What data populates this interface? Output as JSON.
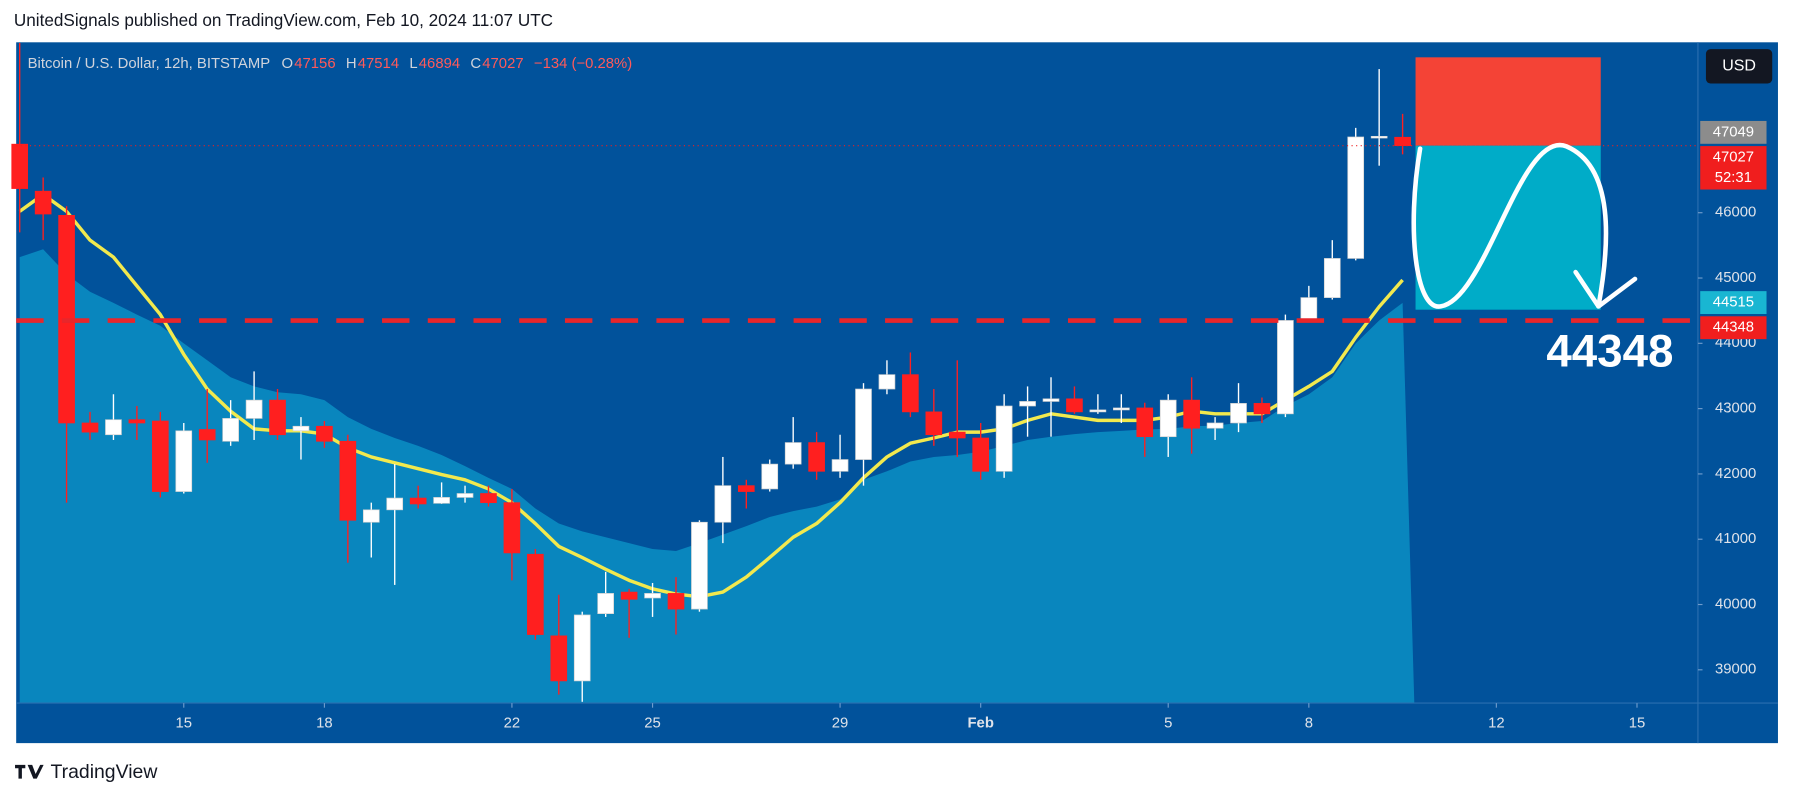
{
  "header": "UnitedSignals published on TradingView.com, Feb 10, 2024 11:07 UTC",
  "footer": "TradingView",
  "currency_button": "USD",
  "chart_data": {
    "type": "candlestick",
    "title": "Bitcoin / U.S. Dollar, 12h, BITSTAMP",
    "ohlc_legend": {
      "labels": [
        "O",
        "H",
        "L",
        "C"
      ],
      "values": [
        47156,
        47514,
        46894,
        47027
      ],
      "change": "−134 (−0.28%)"
    },
    "categories": [
      null,
      null,
      null,
      null,
      null,
      null,
      null,
      null,
      null,
      null,
      null,
      null,
      null,
      null,
      null,
      null,
      null,
      null,
      null,
      null,
      null,
      null,
      null,
      null,
      null,
      null,
      null,
      null,
      null,
      null,
      null,
      null,
      null,
      null,
      null,
      null,
      null,
      null,
      null,
      null,
      null,
      null,
      null,
      null,
      null,
      null,
      null,
      null,
      null,
      null,
      null,
      null,
      null,
      null,
      null,
      null,
      null,
      null,
      null,
      null
    ],
    "open": [
      47050,
      46330,
      45960,
      42780,
      42600,
      42830,
      42810,
      41730,
      42680,
      42500,
      42850,
      43130,
      42660,
      42730,
      42500,
      41260,
      41450,
      41630,
      41550,
      41640,
      41700,
      41560,
      40770,
      39520,
      38830,
      39860,
      40190,
      40100,
      40170,
      39930,
      41260,
      41820,
      41770,
      42150,
      42480,
      42040,
      42220,
      43300,
      43520,
      42950,
      42640,
      42550,
      42040,
      43040,
      43110,
      43150,
      42950,
      42980,
      43010,
      42570,
      43130,
      42700,
      42780,
      43080,
      42920,
      44350,
      44700,
      45300,
      47160,
      47156
    ],
    "high": [
      48600,
      46540,
      46100,
      42950,
      43220,
      43040,
      42950,
      42780,
      43300,
      43130,
      43570,
      43300,
      42870,
      42810,
      42600,
      41560,
      42150,
      41820,
      41870,
      41820,
      41820,
      41770,
      40850,
      40150,
      39890,
      40500,
      40240,
      40330,
      40420,
      41290,
      42260,
      41910,
      42220,
      42870,
      42640,
      42600,
      43390,
      43740,
      43860,
      43300,
      43740,
      42780,
      43220,
      43340,
      43480,
      43340,
      43220,
      43220,
      43090,
      43220,
      43480,
      42870,
      43390,
      43170,
      44440,
      44880,
      45580,
      47300,
      48200,
      47514
    ],
    "low": [
      45700,
      45580,
      41560,
      42520,
      42520,
      42520,
      41640,
      41700,
      42170,
      42430,
      42520,
      42520,
      42220,
      42400,
      40640,
      40720,
      40300,
      41470,
      41540,
      41560,
      41500,
      40370,
      39460,
      38620,
      38510,
      39810,
      39490,
      39810,
      39540,
      39890,
      40940,
      41470,
      41730,
      42080,
      41910,
      41940,
      41820,
      43220,
      42870,
      42430,
      42260,
      41910,
      41940,
      42570,
      42570,
      42920,
      42920,
      42780,
      42260,
      42260,
      42310,
      42520,
      42640,
      42780,
      42870,
      44320,
      44670,
      45270,
      46720,
      46894
    ],
    "close": [
      46370,
      45980,
      42780,
      42640,
      42830,
      42780,
      41730,
      42660,
      42520,
      42850,
      43130,
      42600,
      42730,
      42500,
      41290,
      41450,
      41630,
      41540,
      41640,
      41700,
      41560,
      40790,
      39540,
      38830,
      39840,
      40170,
      40080,
      40170,
      39930,
      41260,
      41820,
      41730,
      42150,
      42480,
      42040,
      42220,
      43300,
      43520,
      42950,
      42600,
      42550,
      42040,
      43040,
      43110,
      43150,
      42950,
      42980,
      43010,
      42570,
      43130,
      42700,
      42780,
      43080,
      42920,
      44350,
      44700,
      45300,
      47160,
      47170,
      47027
    ],
    "up_color": "#ffffff",
    "down_color": "#ff1f1f",
    "overlays": [
      {
        "type": "area",
        "color": "#0a8cc2",
        "values": [
          45320,
          45440,
          45060,
          44790,
          44620,
          44440,
          44270,
          44000,
          43740,
          43480,
          43340,
          43250,
          43220,
          43130,
          42870,
          42690,
          42550,
          42430,
          42290,
          42120,
          41940,
          41770,
          41470,
          41240,
          41120,
          41030,
          40940,
          40850,
          40820,
          40940,
          41070,
          41200,
          41340,
          41430,
          41500,
          41610,
          41910,
          42040,
          42190,
          42260,
          42290,
          42340,
          42430,
          42520,
          42570,
          42610,
          42640,
          42660,
          42680,
          42690,
          42730,
          42740,
          42780,
          42810,
          43040,
          43220,
          43480,
          44000,
          44350,
          44620
        ]
      },
      {
        "type": "line",
        "color": "#f2e94e",
        "values": [
          46020,
          46280,
          46020,
          45580,
          45320,
          44880,
          44440,
          43830,
          43300,
          42960,
          42690,
          42660,
          42660,
          42610,
          42400,
          42260,
          42170,
          42080,
          41990,
          41910,
          41770,
          41560,
          41240,
          40890,
          40720,
          40540,
          40370,
          40240,
          40160,
          40120,
          40190,
          40420,
          40720,
          41030,
          41240,
          41560,
          41940,
          42260,
          42470,
          42550,
          42640,
          42640,
          42690,
          42820,
          42920,
          42870,
          42820,
          42820,
          42820,
          42870,
          42960,
          42920,
          42920,
          42920,
          43130,
          43340,
          43570,
          44090,
          44560,
          44970
        ]
      }
    ],
    "xlim": [
      -0.15,
      71.6
    ],
    "xticks": [
      {
        "value": 7,
        "label": "15"
      },
      {
        "value": 13,
        "label": "18"
      },
      {
        "value": 21,
        "label": "22"
      },
      {
        "value": 27,
        "label": "25"
      },
      {
        "value": 35,
        "label": "29"
      },
      {
        "value": 41,
        "label": "Feb",
        "bold": true
      },
      {
        "value": 49,
        "label": "5"
      },
      {
        "value": 55,
        "label": "8"
      },
      {
        "value": 63,
        "label": "12"
      },
      {
        "value": 69,
        "label": "15"
      }
    ],
    "ylim": [
      38490,
      48610
    ],
    "yticks": [
      39000,
      40000,
      41000,
      42000,
      43000,
      44000,
      45000,
      46000
    ],
    "hline": {
      "value": 44348,
      "color": "#e8262b"
    },
    "position": {
      "stop": 48380,
      "entry": 47027,
      "target": 44515,
      "stop_color": "#f44336",
      "target_color": "#00acc8"
    },
    "price_labels": [
      {
        "value": 47049,
        "color": "#8c8c8c"
      },
      {
        "value": 47027,
        "color": "#f01e1e",
        "countdown": "52:31"
      },
      {
        "value": 44515,
        "color": "#19b6d2"
      },
      {
        "value": 44348,
        "color": "#f01e1e"
      }
    ],
    "annotation": "44348"
  }
}
